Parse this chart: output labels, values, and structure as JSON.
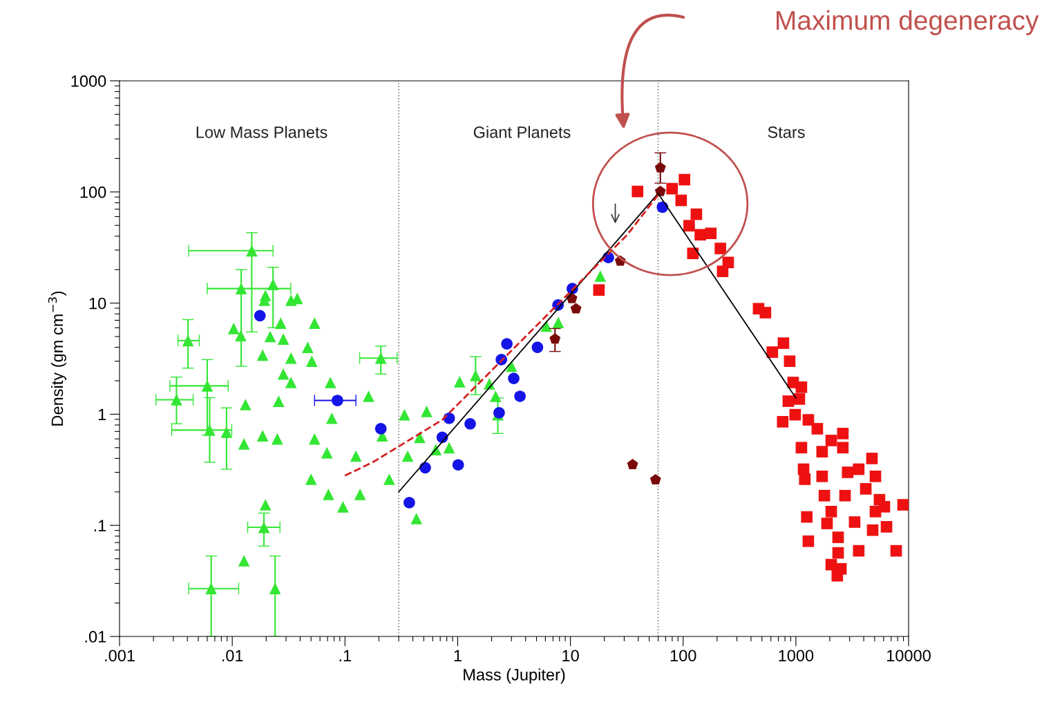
{
  "chart_data": {
    "type": "scatter",
    "xlabel": "Mass (Jupiter)",
    "ylabel": "Density (gm cm$^{−3}$)",
    "log": "xy",
    "xlim": [
      0.001,
      10000
    ],
    "ylim": [
      0.01,
      1000
    ],
    "xticks": [
      {
        "value": 0.001,
        "label": ".001"
      },
      {
        "value": 0.01,
        "label": ".01"
      },
      {
        "value": 0.1,
        "label": ".1"
      },
      1,
      10,
      100,
      1000,
      10000,
      {
        "value": 0.002,
        "label": null
      },
      {
        "value": 0.003,
        "label": null
      },
      {
        "value": 0.004,
        "label": null
      },
      {
        "value": 0.005,
        "label": null
      },
      {
        "value": 0.006,
        "label": null
      },
      {
        "value": 0.007,
        "label": null
      },
      {
        "value": 0.008,
        "label": null
      },
      {
        "value": 0.009,
        "label": null
      },
      {
        "value": 0.02,
        "label": null
      },
      {
        "value": 0.03,
        "label": null
      },
      {
        "value": 0.04,
        "label": null
      },
      {
        "value": 0.05,
        "label": null
      },
      {
        "value": 0.06,
        "label": null
      },
      {
        "value": 0.07,
        "label": null
      },
      {
        "value": 0.08,
        "label": null
      },
      {
        "value": 0.09,
        "label": null
      },
      {
        "value": 0.2,
        "label": null
      },
      {
        "value": 0.3,
        "label": null
      },
      {
        "value": 0.4,
        "label": null
      },
      {
        "value": 0.5,
        "label": null
      },
      {
        "value": 0.6,
        "label": null
      },
      {
        "value": 0.7,
        "label": null
      },
      {
        "value": 0.8,
        "label": null
      },
      {
        "value": 0.9,
        "label": null
      },
      {
        "value": 2,
        "label": null
      },
      {
        "value": 3,
        "label": null
      },
      {
        "value": 4,
        "label": null
      },
      {
        "value": 5,
        "label": null
      },
      {
        "value": 6,
        "label": null
      },
      {
        "value": 7,
        "label": null
      },
      {
        "value": 8,
        "label": null
      },
      {
        "value": 9,
        "label": null
      },
      {
        "value": 20,
        "label": null
      },
      {
        "value": 30,
        "label": null
      },
      {
        "value": 40,
        "label": null
      },
      {
        "value": 50,
        "label": null
      },
      {
        "value": 60,
        "label": null
      },
      {
        "value": 70,
        "label": null
      },
      {
        "value": 80,
        "label": null
      },
      {
        "value": 90,
        "label": null
      },
      {
        "value": 200,
        "label": null
      },
      {
        "value": 300,
        "label": null
      },
      {
        "value": 400,
        "label": null
      },
      {
        "value": 500,
        "label": null
      },
      {
        "value": 600,
        "label": null
      },
      {
        "value": 700,
        "label": null
      },
      {
        "value": 800,
        "label": null
      },
      {
        "value": 900,
        "label": null
      },
      {
        "value": 2000,
        "label": null
      },
      {
        "value": 3000,
        "label": null
      },
      {
        "value": 4000,
        "label": null
      },
      {
        "value": 5000,
        "label": null
      },
      {
        "value": 6000,
        "label": null
      },
      {
        "value": 7000,
        "label": null
      },
      {
        "value": 8000,
        "label": null
      },
      {
        "value": 9000,
        "label": null
      }
    ],
    "yticks": [
      {
        "value": 0.01,
        "label": ".01"
      },
      {
        "value": 0.1,
        "label": ".1"
      },
      1,
      10,
      100,
      1000,
      {
        "value": 0.02,
        "label": null
      },
      {
        "value": 0.03,
        "label": null
      },
      {
        "value": 0.04,
        "label": null
      },
      {
        "value": 0.05,
        "label": null
      },
      {
        "value": 0.06,
        "label": null
      },
      {
        "value": 0.07,
        "label": null
      },
      {
        "value": 0.08,
        "label": null
      },
      {
        "value": 0.09,
        "label": null
      },
      {
        "value": 0.2,
        "label": null
      },
      {
        "value": 0.3,
        "label": null
      },
      {
        "value": 0.4,
        "label": null
      },
      {
        "value": 0.5,
        "label": null
      },
      {
        "value": 0.6,
        "label": null
      },
      {
        "value": 0.7,
        "label": null
      },
      {
        "value": 0.8,
        "label": null
      },
      {
        "value": 0.9,
        "label": null
      },
      {
        "value": 2,
        "label": null
      },
      {
        "value": 3,
        "label": null
      },
      {
        "value": 4,
        "label": null
      },
      {
        "value": 5,
        "label": null
      },
      {
        "value": 6,
        "label": null
      },
      {
        "value": 7,
        "label": null
      },
      {
        "value": 8,
        "label": null
      },
      {
        "value": 9,
        "label": null
      },
      {
        "value": 20,
        "label": null
      },
      {
        "value": 30,
        "label": null
      },
      {
        "value": 40,
        "label": null
      },
      {
        "value": 50,
        "label": null
      },
      {
        "value": 60,
        "label": null
      },
      {
        "value": 70,
        "label": null
      },
      {
        "value": 80,
        "label": null
      },
      {
        "value": 90,
        "label": null
      },
      {
        "value": 200,
        "label": null
      },
      {
        "value": 300,
        "label": null
      },
      {
        "value": 400,
        "label": null
      },
      {
        "value": 500,
        "label": null
      },
      {
        "value": 600,
        "label": null
      },
      {
        "value": 700,
        "label": null
      },
      {
        "value": 800,
        "label": null
      },
      {
        "value": 900,
        "label": null
      }
    ],
    "ref_lines": [
      {
        "axis": "x",
        "value": 0.3,
        "label": null,
        "color": "#808080",
        "line_style": "dotted"
      },
      {
        "axis": "x",
        "value": 60,
        "label": null,
        "color": "#808080",
        "line_style": "dotted"
      }
    ],
    "annotations": [
      "Low Mass Planets",
      "Giant Planets",
      "Stars",
      "Maximum degeneracy"
    ],
    "series": [
      {
        "type": "scatter",
        "color": "#33e633",
        "marker": "triangle",
        "x": [
          0.0149,
          0.012,
          0.0197,
          0.023,
          0.0193,
          0.0332,
          0.0377,
          0.00405,
          0.0103,
          0.0119,
          0.0269,
          0.0537,
          0.0217,
          0.0284,
          0.0467,
          0.0186,
          0.0332,
          0.0508,
          0.0284,
          0.208,
          0.006,
          0.0032,
          0.0332,
          0.0743,
          0.162,
          0.0131,
          0.0258,
          0.0764,
          0.0063,
          0.0089,
          0.0127,
          0.0186,
          0.0251,
          0.0537,
          0.0692,
          0.125,
          0.05,
          0.0713,
          0.096,
          0.136,
          0.247,
          0.0197,
          0.0191,
          0.0127,
          0.0065,
          0.024,
          0.337,
          1.04,
          1.44,
          1.91,
          2.17,
          2.27,
          0.53,
          0.46,
          0.64,
          0.36,
          0.43,
          0.84,
          7.8,
          6.1,
          18.4,
          3.0,
          0.214
        ],
        "values": [
          29.6,
          13.5,
          11.7,
          14.7,
          10.6,
          10.6,
          11.0,
          4.6,
          5.9,
          5.1,
          6.6,
          6.6,
          5.0,
          4.75,
          4.0,
          3.4,
          3.2,
          3.0,
          2.3,
          3.2,
          1.8,
          1.35,
          1.93,
          1.93,
          1.45,
          1.22,
          1.31,
          0.92,
          0.72,
          0.69,
          0.54,
          0.64,
          0.6,
          0.6,
          0.45,
          0.42,
          0.26,
          0.19,
          0.147,
          0.19,
          0.26,
          0.153,
          0.096,
          0.048,
          0.027,
          0.027,
          0.99,
          1.96,
          2.23,
          1.88,
          1.45,
          0.99,
          1.06,
          0.62,
          0.48,
          0.42,
          0.115,
          0.5,
          6.7,
          6.2,
          17.5,
          2.7,
          0.64
        ],
        "errors": [
          [
            5.5,
            43
          ],
          [
            2.7,
            20
          ],
          null,
          [
            6,
            21
          ],
          null,
          null,
          null,
          [
            2.6,
            7.1
          ],
          null,
          null,
          null,
          null,
          null,
          null,
          null,
          null,
          null,
          null,
          null,
          [
            2.3,
            4.1
          ],
          [
            0.65,
            3.1
          ],
          [
            0.82,
            2.16
          ],
          null,
          null,
          null,
          null,
          null,
          null,
          [
            0.37,
            1.41
          ],
          [
            0.32,
            1.14
          ],
          null,
          null,
          null,
          null,
          null,
          null,
          null,
          null,
          null,
          null,
          null,
          null,
          [
            0.065,
            0.129
          ],
          null,
          [
            0.01,
            0.053
          ],
          [
            0.01,
            0.053
          ],
          null,
          null,
          [
            1.5,
            3.3
          ],
          null,
          null,
          [
            0.67,
            1.4
          ],
          null,
          null,
          null,
          null,
          null,
          null,
          null,
          null,
          null,
          null,
          null
        ],
        "xerrors": [
          [
            0.0041,
            0.023
          ],
          [
            0.006,
            0.033
          ],
          null,
          null,
          null,
          null,
          null,
          [
            0.0033,
            0.0051
          ],
          null,
          null,
          null,
          null,
          null,
          null,
          null,
          null,
          null,
          null,
          null,
          [
            0.135,
            0.29
          ],
          [
            0.0028,
            0.0092
          ],
          [
            0.0021,
            0.0045
          ],
          null,
          null,
          null,
          null,
          null,
          null,
          [
            0.0029,
            0.0099
          ],
          null,
          null,
          null,
          null,
          null,
          null,
          null,
          null,
          null,
          null,
          null,
          null,
          null,
          [
            0.0137,
            0.0265
          ],
          null,
          [
            0.0041,
            0.0114
          ],
          null,
          null,
          null,
          null,
          null,
          null,
          null,
          null,
          null,
          null,
          null,
          null,
          null,
          null,
          null,
          null,
          null,
          null
        ]
      },
      {
        "type": "scatter",
        "color": "#1414e6",
        "marker": "circle",
        "x": [
          0.0176,
          0.0857,
          0.208,
          0.372,
          0.515,
          0.73,
          0.84,
          1.29,
          1.01,
          2.33,
          3.57,
          3.14,
          2.44,
          2.73,
          5.1,
          7.76,
          10.4,
          21.7,
          65.5
        ],
        "values": [
          7.7,
          1.33,
          0.74,
          0.16,
          0.33,
          0.62,
          0.92,
          0.82,
          0.35,
          1.03,
          1.45,
          2.1,
          3.1,
          4.3,
          4.0,
          9.6,
          13.5,
          25.7,
          73
        ],
        "xerrors": [
          null,
          [
            0.0537,
            0.125
          ],
          null,
          null,
          null,
          null,
          null,
          null,
          null,
          null,
          null,
          null,
          null,
          null,
          null,
          null,
          null,
          null,
          null
        ]
      },
      {
        "type": "scatter",
        "color": "#7a0a0a",
        "x": [
          7.3,
          11.2,
          10.3,
          27.7,
          35.6,
          56.9,
          62.8,
          62.8
        ],
        "values": [
          4.75,
          8.9,
          11.0,
          23.9,
          0.352,
          0.257,
          165,
          101
        ],
        "errors": [
          [
            3.67,
            5.9
          ],
          null,
          null,
          null,
          null,
          null,
          [
            120,
            225
          ],
          null
        ]
      },
      {
        "type": "scatter",
        "color": "#ee1111",
        "marker": "square",
        "x": [
          17.9,
          39.4,
          102.8,
          79.8,
          96,
          131,
          113,
          142,
          176,
          122,
          214,
          251,
          224,
          467,
          537,
          776,
          618,
          881,
          946,
          1074,
          764,
          1290,
          1550,
          2610,
          2060,
          1120,
          1710,
          2610,
          1170,
          1710,
          2880,
          3610,
          4730,
          1200,
          5080,
          1790,
          2730,
          4170,
          5520,
          8930,
          2060,
          5080,
          6100,
          1250,
          1890,
          3320,
          4800,
          6370,
          2370,
          1290,
          3610,
          7760,
          2370,
          2060,
          2510,
          2330,
          857,
          986,
          1120
        ],
        "values": [
          13.1,
          101,
          129,
          107,
          84,
          63,
          49.7,
          41.2,
          42.4,
          28,
          31,
          23.2,
          19.3,
          8.9,
          8.2,
          4.36,
          3.62,
          3.0,
          1.93,
          1.37,
          0.855,
          0.89,
          0.74,
          0.67,
          0.58,
          0.5,
          0.46,
          0.5,
          0.32,
          0.276,
          0.3,
          0.32,
          0.4,
          0.26,
          0.276,
          0.185,
          0.185,
          0.213,
          0.17,
          0.153,
          0.133,
          0.133,
          0.147,
          0.119,
          0.104,
          0.107,
          0.0905,
          0.097,
          0.078,
          0.072,
          0.059,
          0.059,
          0.0565,
          0.0443,
          0.0406,
          0.0352,
          1.31,
          0.99,
          1.75
        ]
      },
      {
        "type": "line",
        "color": "#000000",
        "marker": "none",
        "line_style": "solid",
        "x": [
          0.3,
          60,
          1000
        ],
        "values": [
          0.2,
          97,
          1.4
        ]
      },
      {
        "type": "line",
        "color": "#d62020",
        "marker": "none",
        "line_style": "dashed",
        "x": [
          0.1,
          0.179,
          0.73,
          2.5,
          31.8,
          60
        ],
        "values": [
          0.28,
          0.373,
          0.89,
          3.1,
          41,
          94
        ]
      }
    ]
  }
}
